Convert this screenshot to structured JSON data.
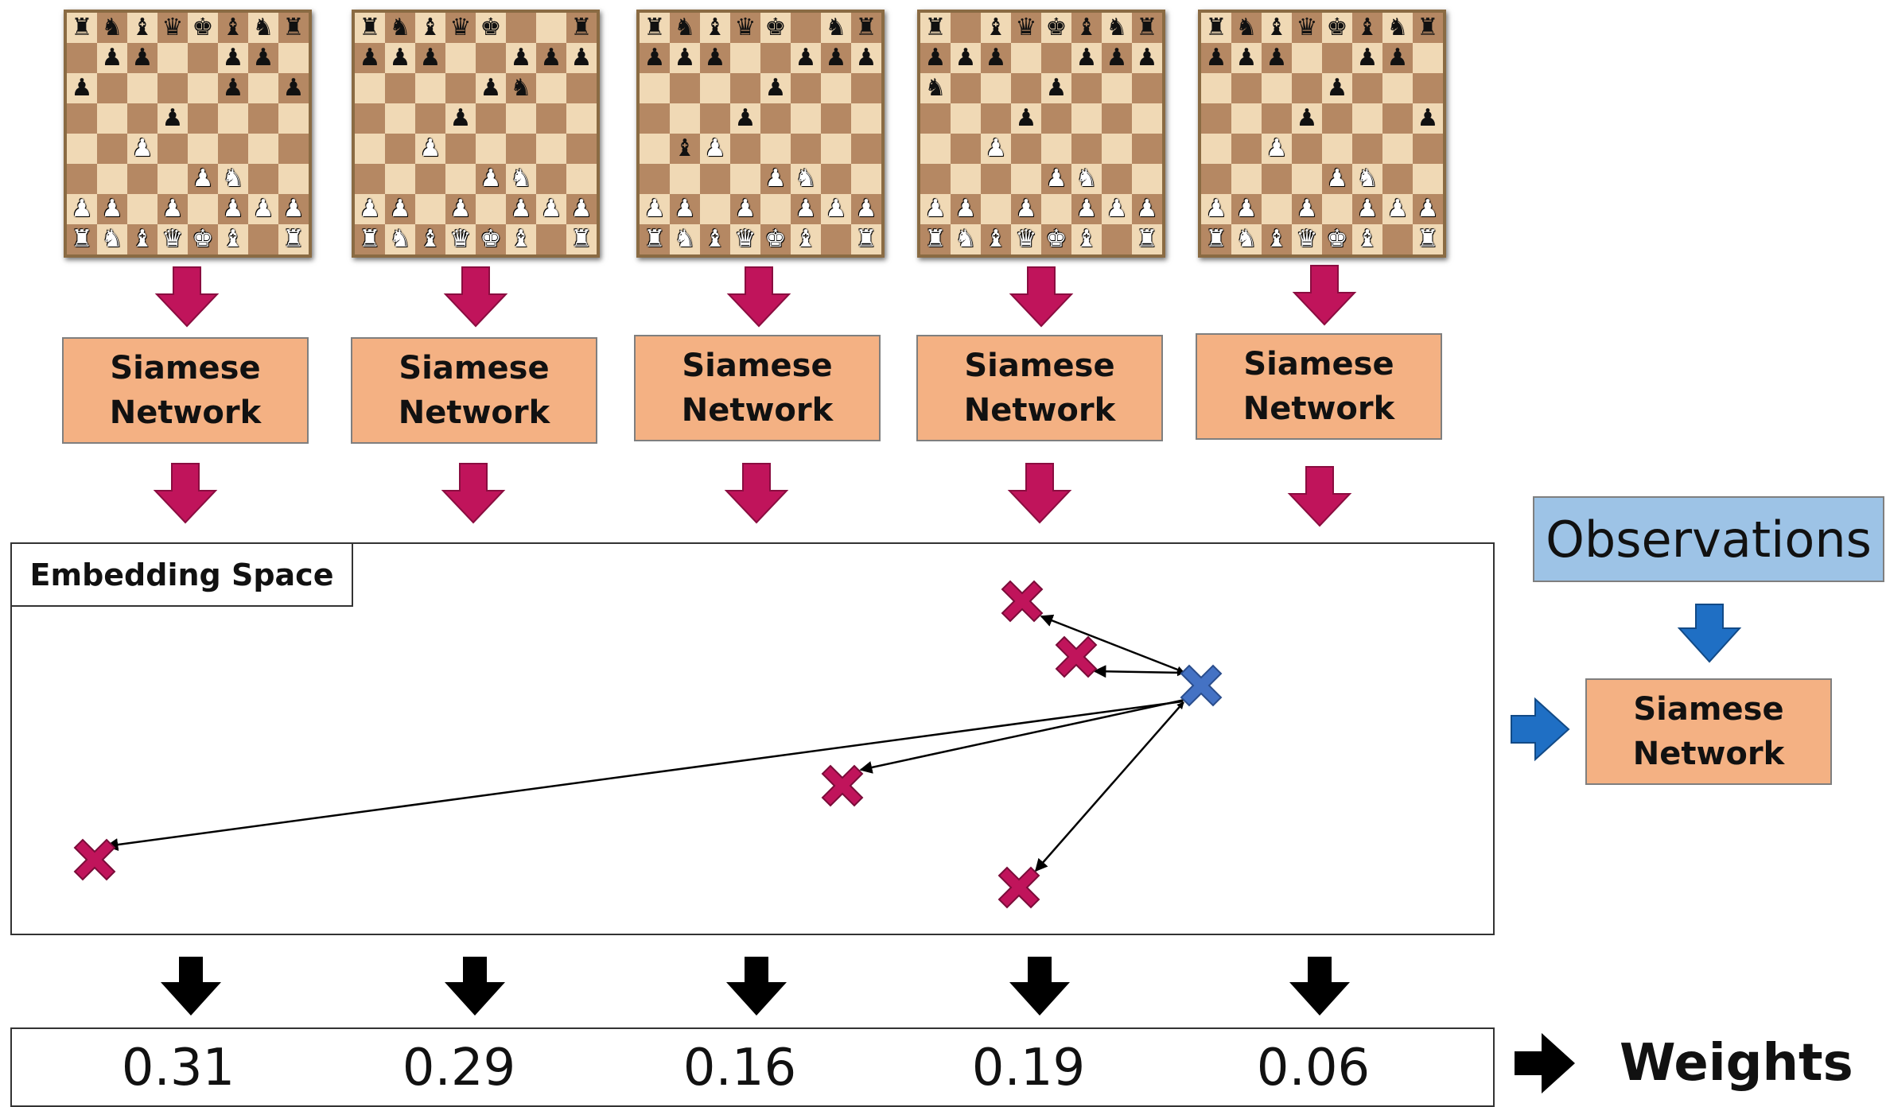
{
  "boards": [
    {
      "rows": [
        "rnbqkbnr",
        ".pp..pp.",
        "p....p.p",
        "...p....",
        "..P.....",
        "....PN..",
        "PP.P.PPP",
        "RNBQKB.R"
      ]
    },
    {
      "rows": [
        "rnbqk..r",
        "ppp..ppp",
        "....pn..",
        "...p....",
        "..P.....",
        "....PN..",
        "PP.P.PPP",
        "RNBQKB.R"
      ]
    },
    {
      "rows": [
        "rnbqk.nr",
        "ppp..ppp",
        "....p...",
        "...p....",
        ".bP.....",
        "....PN..",
        "PP.P.PPP",
        "RNBQKB.R"
      ]
    },
    {
      "rows": [
        "r.bqkbnr",
        "ppp..ppp",
        "n...p...",
        "...p....",
        "..P.....",
        "....PN..",
        "PP.P.PPP",
        "RNBQKB.R"
      ]
    },
    {
      "rows": [
        "rnbqkbnr",
        "ppp..pp.",
        "....p...",
        "...p...p",
        "..P.....",
        "....PN..",
        "PP.P.PPP",
        "RNBQKB.R"
      ]
    }
  ],
  "siamese": {
    "line1": "Siamese",
    "line2": "Network"
  },
  "observations_label": "Observations",
  "embedding_label": "Embedding Space",
  "weights": [
    "0.31",
    "0.29",
    "0.16",
    "0.19",
    "0.06"
  ],
  "weights_label": "Weights",
  "colors": {
    "magenta": "#c0145b",
    "blue": "#4472c4",
    "arrow_blue": "#1f6fc4",
    "box_orange": "#f4b183",
    "box_blue": "#9dc3e6"
  }
}
